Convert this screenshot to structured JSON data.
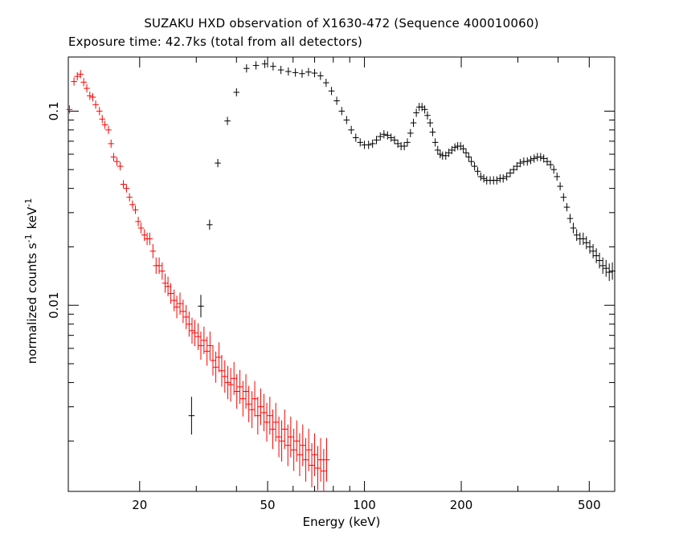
{
  "chart_data": {
    "type": "scatter",
    "title": "SUZAKU HXD observation of X1630-472 (Sequence 400010060)",
    "subtitle": "Exposure time: 42.7ks (total from all detectors)",
    "xlabel": "Energy (keV)",
    "ylabel": "normalized counts s",
    "ylabel_unit": "keV",
    "ylabel_exp": "-1",
    "x_scale": "log",
    "y_scale": "log",
    "xlim": [
      12,
      600
    ],
    "ylim": [
      0.0011,
      0.19
    ],
    "x_tick_labels": [
      {
        "value": 20,
        "label": "20"
      },
      {
        "value": 50,
        "label": "50"
      },
      {
        "value": 100,
        "label": "100"
      },
      {
        "value": 200,
        "label": "200"
      },
      {
        "value": 500,
        "label": "500"
      }
    ],
    "y_tick_labels": [
      {
        "value": 0.1,
        "label": "0.1"
      },
      {
        "value": 0.01,
        "label": "0.01"
      }
    ],
    "series": [
      {
        "color": "#ff0000",
        "points": [
          [
            12.1,
            0.102
          ],
          [
            12.5,
            0.142
          ],
          [
            12.8,
            0.151
          ],
          [
            13.1,
            0.155
          ],
          [
            13.4,
            0.141
          ],
          [
            13.7,
            0.131
          ],
          [
            14.0,
            0.12
          ],
          [
            14.3,
            0.118
          ],
          [
            14.6,
            0.108
          ],
          [
            15.0,
            0.1
          ],
          [
            15.3,
            0.091
          ],
          [
            15.6,
            0.085
          ],
          [
            16.0,
            0.08
          ],
          [
            16.3,
            0.068
          ],
          [
            16.6,
            0.058
          ],
          [
            17.0,
            0.055
          ],
          [
            17.4,
            0.052
          ],
          [
            17.8,
            0.042
          ],
          [
            18.2,
            0.04
          ],
          [
            18.6,
            0.036
          ],
          [
            19.0,
            0.033
          ],
          [
            19.4,
            0.031
          ],
          [
            19.8,
            0.027
          ],
          [
            20.2,
            0.025
          ],
          [
            20.7,
            0.023
          ],
          [
            21.1,
            0.022
          ],
          [
            21.5,
            0.022
          ],
          [
            22.0,
            0.019
          ],
          [
            22.5,
            0.016
          ],
          [
            23.0,
            0.016
          ],
          [
            23.5,
            0.015
          ],
          [
            24.0,
            0.013
          ],
          [
            24.5,
            0.0125
          ],
          [
            25.0,
            0.0115
          ],
          [
            25.6,
            0.0106
          ],
          [
            26.1,
            0.0098
          ],
          [
            26.7,
            0.0102
          ],
          [
            27.3,
            0.0093
          ],
          [
            27.9,
            0.0087
          ],
          [
            28.5,
            0.008
          ],
          [
            29.1,
            0.0074
          ],
          [
            29.7,
            0.0072
          ],
          [
            30.4,
            0.0069
          ],
          [
            31.0,
            0.0062
          ],
          [
            31.7,
            0.0066
          ],
          [
            32.4,
            0.0058
          ],
          [
            33.1,
            0.0062
          ],
          [
            33.8,
            0.0052
          ],
          [
            34.5,
            0.0048
          ],
          [
            35.3,
            0.0054
          ],
          [
            36.0,
            0.0046
          ],
          [
            36.8,
            0.0043
          ],
          [
            37.6,
            0.004
          ],
          [
            38.4,
            0.0039
          ],
          [
            39.3,
            0.0042
          ],
          [
            40.1,
            0.0036
          ],
          [
            41.0,
            0.0038
          ],
          [
            41.9,
            0.0033
          ],
          [
            42.8,
            0.0036
          ],
          [
            43.7,
            0.0031
          ],
          [
            44.7,
            0.0029
          ],
          [
            45.6,
            0.0033
          ],
          [
            46.6,
            0.0027
          ],
          [
            47.6,
            0.003
          ],
          [
            48.7,
            0.0028
          ],
          [
            49.7,
            0.0025
          ],
          [
            50.8,
            0.0027
          ],
          [
            51.9,
            0.0023
          ],
          [
            53.0,
            0.0025
          ],
          [
            54.2,
            0.0021
          ],
          [
            55.3,
            0.002
          ],
          [
            56.5,
            0.0023
          ],
          [
            57.8,
            0.0019
          ],
          [
            59.0,
            0.0021
          ],
          [
            60.3,
            0.0018
          ],
          [
            61.6,
            0.002
          ],
          [
            62.9,
            0.0017
          ],
          [
            64.3,
            0.0019
          ],
          [
            65.7,
            0.0016
          ],
          [
            67.1,
            0.0018
          ],
          [
            68.6,
            0.0015
          ],
          [
            70.0,
            0.0017
          ],
          [
            71.6,
            0.00145
          ],
          [
            73.1,
            0.0016
          ],
          [
            74.7,
            0.0014
          ],
          [
            76.3,
            0.0016
          ]
        ]
      },
      {
        "color": "#000000",
        "points": [
          [
            29.0,
            0.0027
          ],
          [
            31.0,
            0.0099
          ],
          [
            33.0,
            0.026
          ],
          [
            35.0,
            0.054
          ],
          [
            37.5,
            0.089
          ],
          [
            40.0,
            0.125
          ],
          [
            43.0,
            0.166
          ],
          [
            46.0,
            0.172
          ],
          [
            49.0,
            0.175
          ],
          [
            52.0,
            0.17
          ],
          [
            55.0,
            0.163
          ],
          [
            58.0,
            0.16
          ],
          [
            61.0,
            0.158
          ],
          [
            64.0,
            0.156
          ],
          [
            67.0,
            0.159
          ],
          [
            70.0,
            0.157
          ],
          [
            73.0,
            0.152
          ],
          [
            76.0,
            0.14
          ],
          [
            79.0,
            0.127
          ],
          [
            82.0,
            0.113
          ],
          [
            85.0,
            0.1
          ],
          [
            88.0,
            0.09
          ],
          [
            91.0,
            0.08
          ],
          [
            94.0,
            0.073
          ],
          [
            97.0,
            0.069
          ],
          [
            100.0,
            0.067
          ],
          [
            103.0,
            0.067
          ],
          [
            106.0,
            0.068
          ],
          [
            109.0,
            0.071
          ],
          [
            112.0,
            0.074
          ],
          [
            115.0,
            0.076
          ],
          [
            118.0,
            0.075
          ],
          [
            121.0,
            0.073
          ],
          [
            124.0,
            0.071
          ],
          [
            127.0,
            0.068
          ],
          [
            130.0,
            0.066
          ],
          [
            133.0,
            0.066
          ],
          [
            136.0,
            0.069
          ],
          [
            139.0,
            0.077
          ],
          [
            142.0,
            0.087
          ],
          [
            145.0,
            0.098
          ],
          [
            148.0,
            0.105
          ],
          [
            151.0,
            0.105
          ],
          [
            154.0,
            0.102
          ],
          [
            157.0,
            0.095
          ],
          [
            160.0,
            0.087
          ],
          [
            163.0,
            0.078
          ],
          [
            166.0,
            0.069
          ],
          [
            169.0,
            0.063
          ],
          [
            172.0,
            0.06
          ],
          [
            175.0,
            0.059
          ],
          [
            179.0,
            0.059
          ],
          [
            183.0,
            0.061
          ],
          [
            187.0,
            0.063
          ],
          [
            191.0,
            0.065
          ],
          [
            195.0,
            0.066
          ],
          [
            199.0,
            0.066
          ],
          [
            203.0,
            0.064
          ],
          [
            207.0,
            0.061
          ],
          [
            211.0,
            0.058
          ],
          [
            215.0,
            0.055
          ],
          [
            220.0,
            0.052
          ],
          [
            225.0,
            0.049
          ],
          [
            230.0,
            0.046
          ],
          [
            235.0,
            0.045
          ],
          [
            240.0,
            0.044
          ],
          [
            246.0,
            0.044
          ],
          [
            252.0,
            0.044
          ],
          [
            258.0,
            0.044
          ],
          [
            264.0,
            0.045
          ],
          [
            270.0,
            0.045
          ],
          [
            277.0,
            0.046
          ],
          [
            284.0,
            0.048
          ],
          [
            291.0,
            0.05
          ],
          [
            298.0,
            0.052
          ],
          [
            305.0,
            0.054
          ],
          [
            313.0,
            0.055
          ],
          [
            321.0,
            0.055
          ],
          [
            329.0,
            0.056
          ],
          [
            337.0,
            0.057
          ],
          [
            345.0,
            0.058
          ],
          [
            353.0,
            0.058
          ],
          [
            361.0,
            0.057
          ],
          [
            370.0,
            0.055
          ],
          [
            379.0,
            0.053
          ],
          [
            388.0,
            0.05
          ],
          [
            397.0,
            0.046
          ],
          [
            406.0,
            0.041
          ],
          [
            416.0,
            0.036
          ],
          [
            426.0,
            0.032
          ],
          [
            436.0,
            0.028
          ],
          [
            446.0,
            0.025
          ],
          [
            457.0,
            0.023
          ],
          [
            468.0,
            0.022
          ],
          [
            479.0,
            0.022
          ],
          [
            490.0,
            0.021
          ],
          [
            502.0,
            0.02
          ],
          [
            514.0,
            0.019
          ],
          [
            526.0,
            0.018
          ],
          [
            538.0,
            0.017
          ],
          [
            551.0,
            0.016
          ],
          [
            564.0,
            0.0155
          ],
          [
            577.0,
            0.0148
          ],
          [
            590.0,
            0.015
          ]
        ]
      }
    ]
  }
}
